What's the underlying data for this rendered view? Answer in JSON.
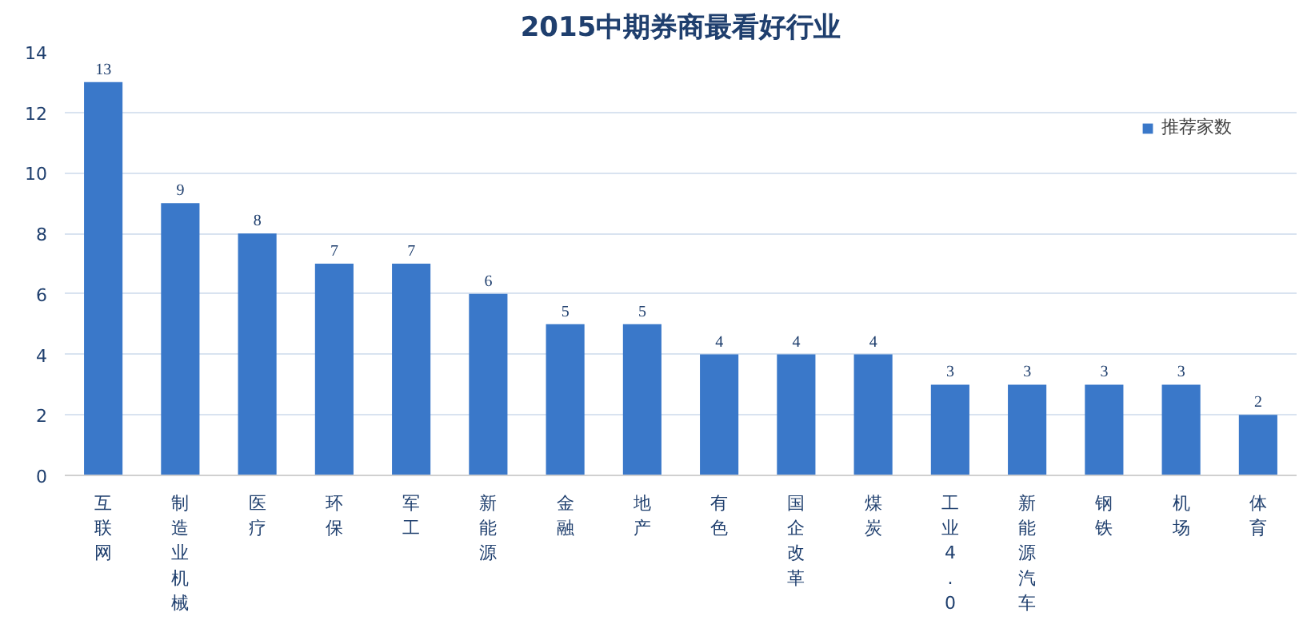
{
  "chart_data": {
    "type": "bar",
    "title": "2015中期券商最看好行业",
    "categories": [
      "互联网",
      "制造业机械",
      "医疗",
      "环保",
      "军工",
      "新能源",
      "金融",
      "地产",
      "有色",
      "国企改革",
      "煤炭",
      "工业4.0",
      "新能源汽车",
      "钢铁",
      "机场",
      "体育"
    ],
    "series": [
      {
        "name": "推荐家数",
        "color": "#3a78c9",
        "values": [
          13,
          9,
          8,
          7,
          7,
          6,
          5,
          5,
          4,
          4,
          4,
          3,
          3,
          3,
          3,
          2
        ]
      }
    ],
    "ylim": [
      0,
      14
    ],
    "yticks": [
      0,
      2,
      4,
      6,
      8,
      10,
      12,
      14
    ],
    "grid": "y",
    "legend": "top right",
    "data_labels": true
  }
}
